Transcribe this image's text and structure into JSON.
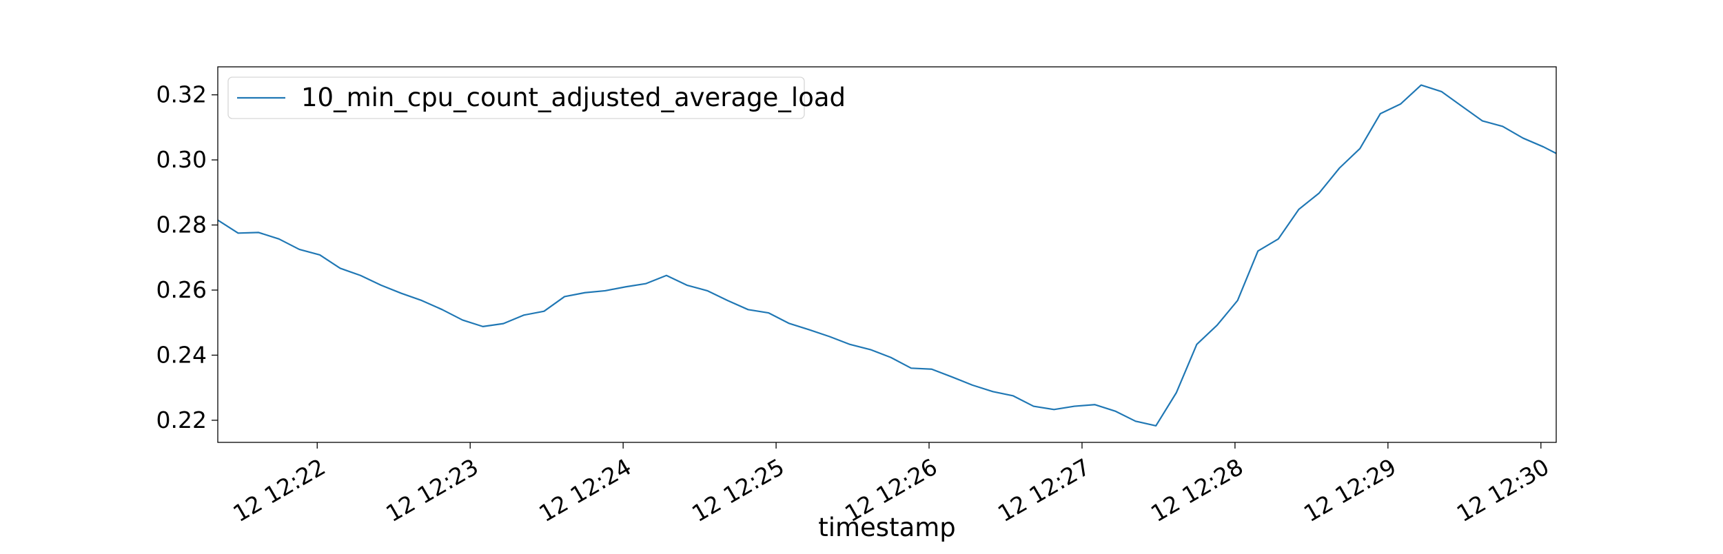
{
  "chart_data": {
    "type": "line",
    "title": "",
    "xlabel": "timestamp",
    "ylabel": "",
    "grid": false,
    "legend_position": "top-left",
    "x_unit": "minute of 12th (fractional)",
    "xlim": [
      21.35,
      30.1
    ],
    "ylim": [
      0.2132,
      0.3286
    ],
    "x_ticks": [
      {
        "value": 22,
        "label": "12 12:22"
      },
      {
        "value": 23,
        "label": "12 12:23"
      },
      {
        "value": 24,
        "label": "12 12:24"
      },
      {
        "value": 25,
        "label": "12 12:25"
      },
      {
        "value": 26,
        "label": "12 12:26"
      },
      {
        "value": 27,
        "label": "12 12:27"
      },
      {
        "value": 28,
        "label": "12 12:28"
      },
      {
        "value": 29,
        "label": "12 12:29"
      },
      {
        "value": 30,
        "label": "12 12:30"
      }
    ],
    "y_ticks": [
      {
        "value": 0.22,
        "label": "0.22"
      },
      {
        "value": 0.24,
        "label": "0.24"
      },
      {
        "value": 0.26,
        "label": "0.26"
      },
      {
        "value": 0.28,
        "label": "0.28"
      },
      {
        "value": 0.3,
        "label": "0.30"
      },
      {
        "value": 0.32,
        "label": "0.32"
      }
    ],
    "series": [
      {
        "name": "10_min_cpu_count_adjusted_average_load",
        "color": "#1f77b4",
        "x": [
          21.35,
          21.483,
          21.617,
          21.75,
          21.883,
          22.017,
          22.15,
          22.283,
          22.417,
          22.55,
          22.683,
          22.817,
          22.95,
          23.083,
          23.217,
          23.35,
          23.483,
          23.617,
          23.75,
          23.883,
          24.017,
          24.15,
          24.283,
          24.417,
          24.55,
          24.683,
          24.817,
          24.95,
          25.083,
          25.217,
          25.35,
          25.483,
          25.617,
          25.75,
          25.883,
          26.017,
          26.15,
          26.283,
          26.417,
          26.55,
          26.683,
          26.817,
          26.95,
          27.083,
          27.217,
          27.35,
          27.483,
          27.617,
          27.75,
          27.883,
          28.017,
          28.15,
          28.283,
          28.417,
          28.55,
          28.683,
          28.817,
          28.95,
          29.083,
          29.217,
          29.35,
          29.483,
          29.617,
          29.75,
          29.883,
          30.017,
          30.1
        ],
        "values": [
          0.2815,
          0.2775,
          0.2777,
          0.2757,
          0.2725,
          0.2708,
          0.2667,
          0.2645,
          0.2615,
          0.259,
          0.2568,
          0.254,
          0.2508,
          0.2488,
          0.2497,
          0.2523,
          0.2535,
          0.258,
          0.2592,
          0.2598,
          0.261,
          0.262,
          0.2645,
          0.2615,
          0.2598,
          0.2568,
          0.254,
          0.253,
          0.2498,
          0.2478,
          0.2457,
          0.2433,
          0.2417,
          0.2393,
          0.236,
          0.2357,
          0.2333,
          0.2308,
          0.2288,
          0.2275,
          0.2243,
          0.2233,
          0.2243,
          0.2248,
          0.2228,
          0.2197,
          0.2183,
          0.2285,
          0.2433,
          0.2492,
          0.2568,
          0.272,
          0.2757,
          0.2848,
          0.2898,
          0.2975,
          0.3035,
          0.3142,
          0.3172,
          0.323,
          0.321,
          0.3165,
          0.312,
          0.3103,
          0.3067,
          0.304,
          0.302
        ]
      }
    ]
  }
}
